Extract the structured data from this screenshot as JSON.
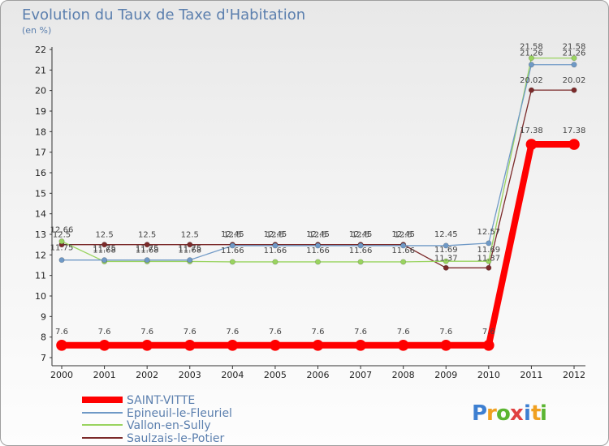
{
  "chart_data": {
    "type": "line",
    "title": "Evolution du Taux de Taxe d'Habitation",
    "subtitle": "(en %)",
    "xlabel": "",
    "ylabel": "",
    "categories": [
      "2000",
      "2001",
      "2002",
      "2003",
      "2004",
      "2005",
      "2006",
      "2007",
      "2008",
      "2009",
      "2010",
      "2011",
      "2012"
    ],
    "ylim": [
      7,
      22
    ],
    "yticks": [
      "7",
      "8",
      "9",
      "10",
      "11",
      "12",
      "13",
      "14",
      "15",
      "16",
      "17",
      "18",
      "19",
      "20",
      "21",
      "22"
    ],
    "grid": false,
    "legend_position": "bottom-left",
    "series": [
      {
        "name": "SAINT-VITTE",
        "color": "#ff0000",
        "values": [
          7.6,
          7.6,
          7.6,
          7.6,
          7.6,
          7.6,
          7.6,
          7.6,
          7.6,
          7.6,
          7.6,
          17.38,
          17.38
        ],
        "labels": [
          "7.6",
          "7.6",
          "7.6",
          "7.6",
          "7.6",
          "7.6",
          "7.6",
          "7.6",
          "7.6",
          "7.6",
          "7.6",
          "17.38",
          "17.38"
        ]
      },
      {
        "name": "Epineuil-le-Fleuriel",
        "color": "#6f99c6",
        "values": [
          11.75,
          11.75,
          11.75,
          11.75,
          12.45,
          12.45,
          12.45,
          12.45,
          12.45,
          12.45,
          12.57,
          21.26,
          21.26
        ],
        "labels": [
          "11.75",
          "11.75",
          "11.75",
          "11.75",
          "12.45",
          "12.45",
          "12.45",
          "12.45",
          "12.45",
          "12.45",
          "12.57",
          "21.26",
          "21.26"
        ]
      },
      {
        "name": "Vallon-en-Sully",
        "color": "#99d35f",
        "values": [
          12.66,
          11.68,
          11.68,
          11.68,
          11.66,
          11.66,
          11.66,
          11.66,
          11.66,
          11.69,
          11.69,
          21.58,
          21.58
        ],
        "labels": [
          "12.66",
          "11.68",
          "11.68",
          "11.68",
          "11.66",
          "11.66",
          "11.66",
          "11.66",
          "11.66",
          "11.69",
          "11.69",
          "21.58",
          "21.58"
        ]
      },
      {
        "name": "Saulzais-le-Potier",
        "color": "#7b2a2a",
        "values": [
          12.5,
          12.5,
          12.5,
          12.5,
          12.5,
          12.5,
          12.5,
          12.5,
          12.5,
          11.37,
          11.37,
          20.02,
          20.02
        ],
        "labels": [
          "12.5",
          "12.5",
          "12.5",
          "12.5",
          "12.5",
          "12.5",
          "12.5",
          "12.5",
          "12.5",
          "11.37",
          "11.37",
          "20.02",
          "20.02"
        ]
      }
    ]
  },
  "logo": {
    "text": "Proxiti",
    "letters": [
      "P",
      "r",
      "o",
      "x",
      "i",
      "t",
      "i"
    ],
    "colors": [
      "#3d7fd1",
      "#f0a020",
      "#5bb531",
      "#e04040",
      "#3d7fd1",
      "#f0a020",
      "#5bb531"
    ]
  }
}
